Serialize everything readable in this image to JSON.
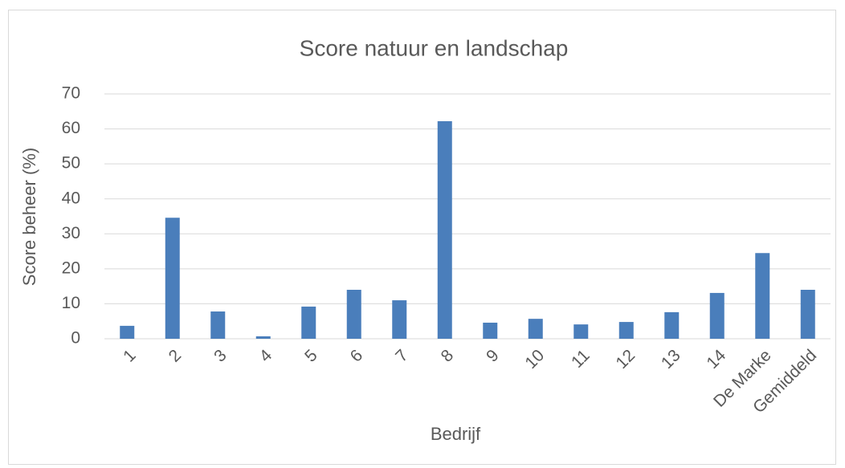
{
  "chart_data": {
    "type": "bar",
    "title": "Score natuur en landschap",
    "xlabel": "Bedrijf",
    "ylabel": "Score beheer (%)",
    "categories": [
      "1",
      "2",
      "3",
      "4",
      "5",
      "6",
      "7",
      "8",
      "9",
      "10",
      "11",
      "12",
      "13",
      "14",
      "De Marke",
      "Gemiddeld"
    ],
    "values": [
      3.7,
      34.6,
      7.8,
      0.7,
      9.2,
      14,
      11,
      62.2,
      4.6,
      5.7,
      4.1,
      4.8,
      7.6,
      13.1,
      24.5,
      14
    ],
    "color": "#4a7ebb",
    "ylim": [
      0,
      70
    ],
    "yticks": [
      0,
      10,
      20,
      30,
      40,
      50,
      60,
      70
    ],
    "grid": true
  }
}
